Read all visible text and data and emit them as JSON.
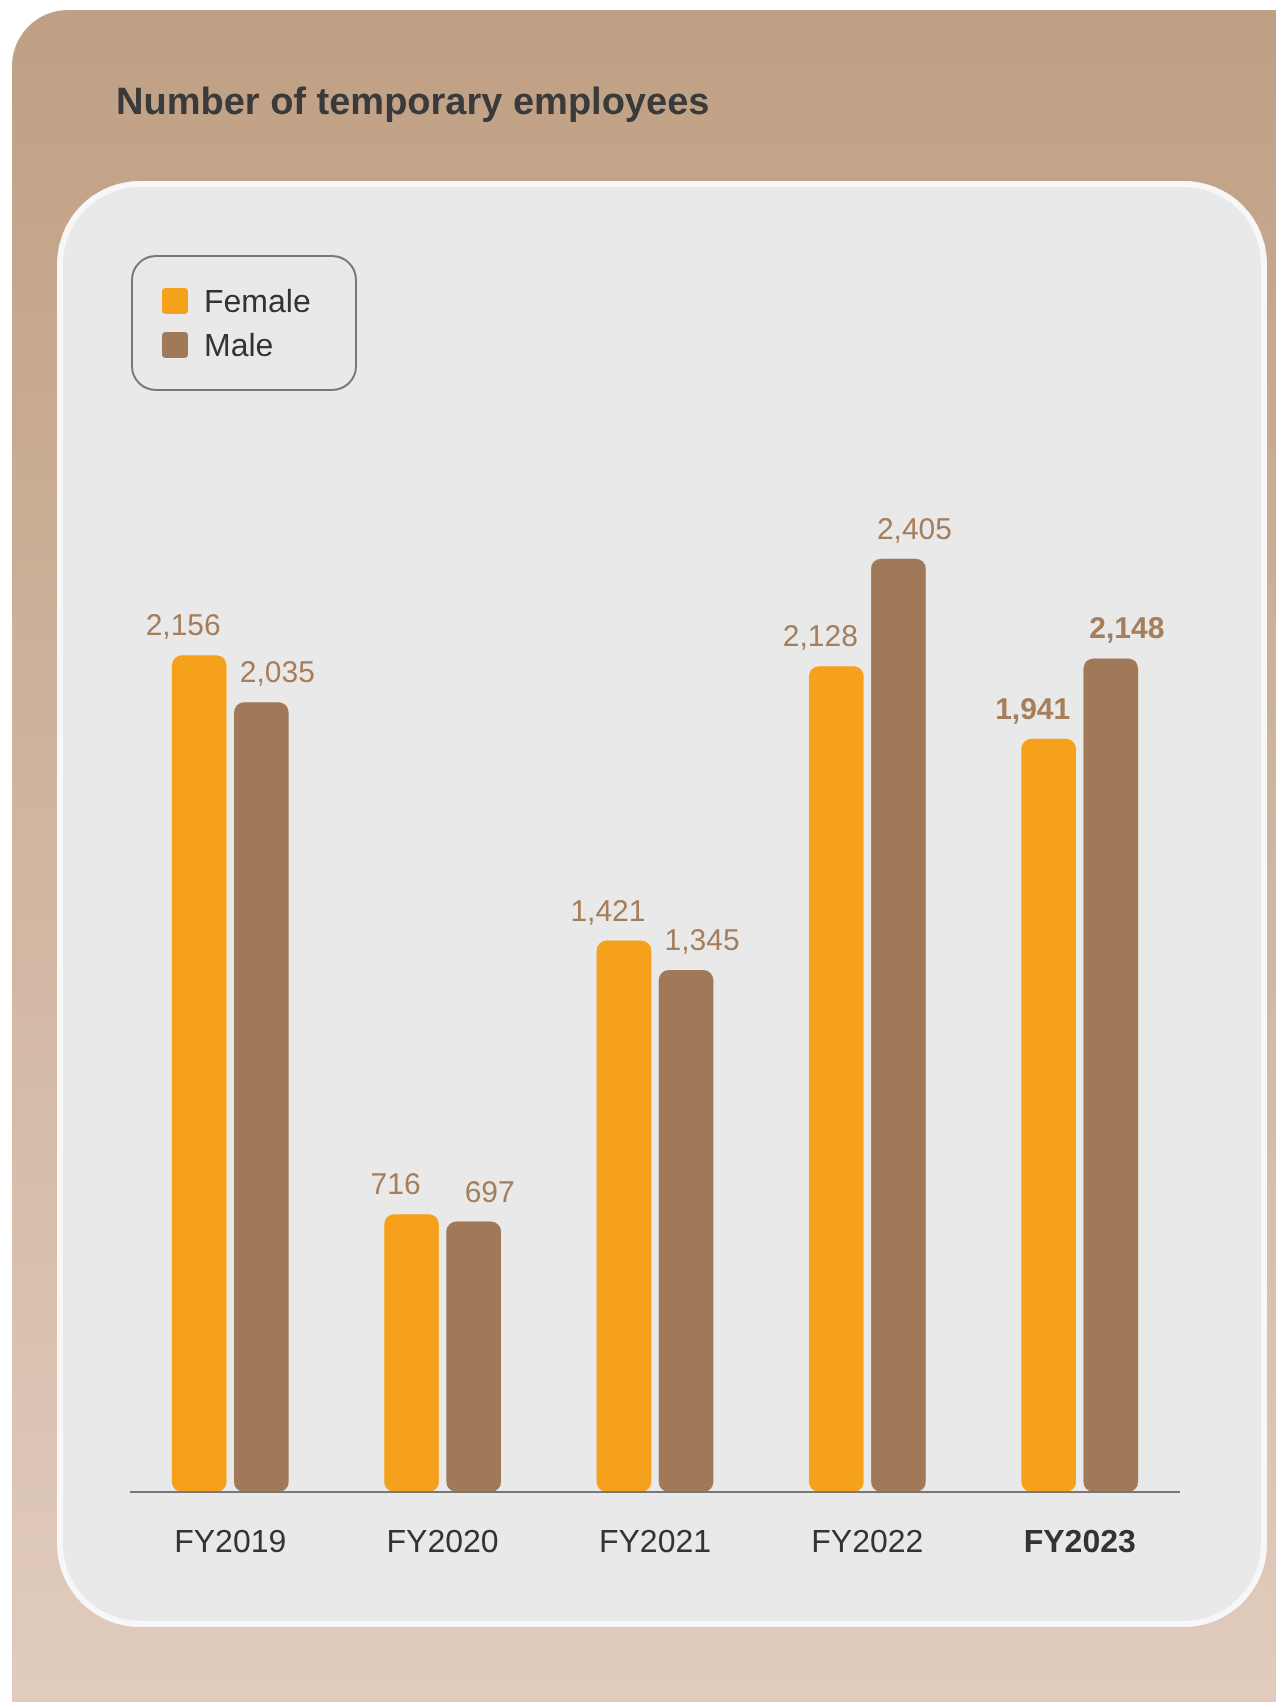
{
  "chart_data": {
    "type": "bar",
    "title": "Number of temporary employees",
    "categories": [
      "FY2019",
      "FY2020",
      "FY2021",
      "FY2022",
      "FY2023"
    ],
    "series": [
      {
        "name": "Female",
        "color": "#f5a11c",
        "values": [
          2156,
          716,
          1421,
          2128,
          1941
        ],
        "value_labels": [
          "2,156",
          "716",
          "1,421",
          "2,128",
          "1,941"
        ]
      },
      {
        "name": "Male",
        "color": "#a07a58",
        "values": [
          2035,
          697,
          1345,
          2405,
          2148
        ],
        "value_labels": [
          "2,035",
          "697",
          "1,345",
          "2,405",
          "2,148"
        ]
      }
    ],
    "legend": "top left"
  }
}
